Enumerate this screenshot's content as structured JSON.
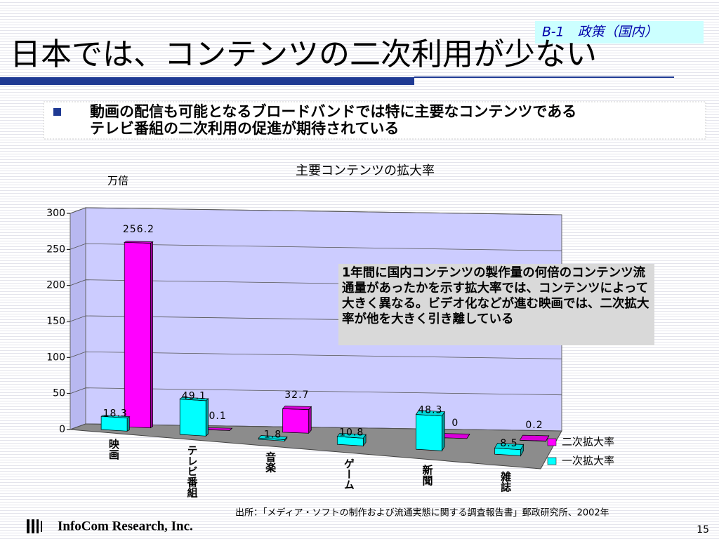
{
  "slide": {
    "tag": "B-1　政策（国内）",
    "title": "日本では、コンテンツの二次利用が少ない",
    "bullet": [
      "動画の配信も可能となるブロードバンドでは特に主要なコンテンツである",
      "テレビ番組の二次利用の促進が期待されている"
    ],
    "note": "1年間に国内コンテンツの製作量の何倍のコンテンツ流通量があったかを示す拡大率では、コンテンツによって大きく異なる。ビデオ化などが進む映画では、二次拡大率が他を大きく引き離している",
    "source": "出所：「メディア・ソフトの制作および流通実態に関する調査報告書」郵政研究所、2002年",
    "company": "InfoCom Research, Inc.",
    "page": "15"
  },
  "chart_data": {
    "type": "bar3d",
    "title": "主要コンテンツの拡大率",
    "y_label": "万倍",
    "categories": [
      "映画",
      "テレビ番組",
      "音楽",
      "ゲーム",
      "新聞",
      "雑誌"
    ],
    "series": [
      {
        "name": "一次拡大率",
        "color": "#00ffff",
        "values": [
          18.3,
          49.1,
          1.8,
          10.8,
          48.3,
          8.5
        ]
      },
      {
        "name": "二次拡大率",
        "color": "#ff00ff",
        "values": [
          256.2,
          0.1,
          32.7,
          null,
          0,
          0.2
        ]
      }
    ],
    "ylim": [
      0,
      300
    ],
    "yticks": [
      0,
      50,
      100,
      150,
      200,
      250,
      300
    ],
    "grid": true
  }
}
